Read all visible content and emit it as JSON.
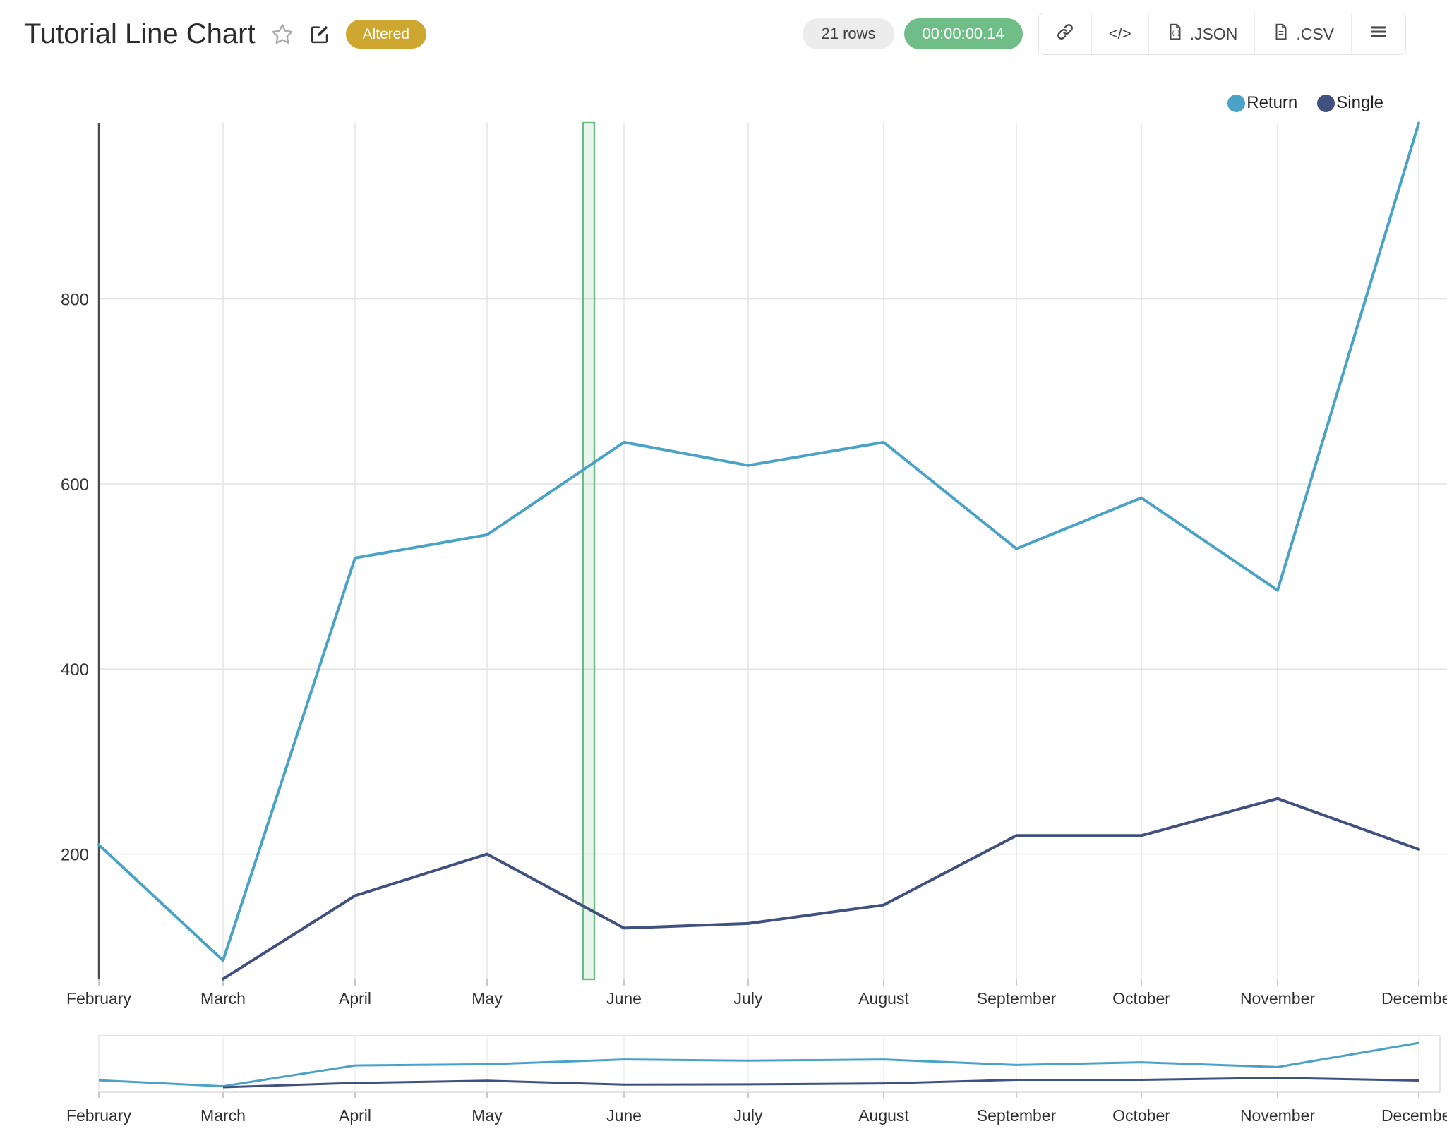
{
  "header": {
    "title": "Tutorial Line Chart",
    "badge": "Altered",
    "rows_count": "21 rows",
    "runtime": "00:00:00.14",
    "code_label": "</>",
    "export_json": ".JSON",
    "export_csv": ".CSV"
  },
  "icons": {
    "favorite": "star-outline-icon",
    "edit": "pencil-square-icon",
    "link": "chain-link-icon",
    "embed": "code-brackets-icon",
    "json_doc": "file-json-icon",
    "csv_doc": "file-csv-icon",
    "menu": "hamburger-icon"
  },
  "colors": {
    "badge_gold": "#cda72f",
    "runtime_green": "#6fbe87",
    "rows_gray": "#ececec",
    "return_line": "#4aa2c6",
    "single_line": "#41507e",
    "gridline": "#e4e4e4",
    "axis_line": "#4a4a4a",
    "tick_text": "#333333",
    "band_border": "#6cbc80",
    "band_fill": "rgba(108,188,128,0.15)"
  },
  "chart_data": {
    "type": "line",
    "x": [
      "February",
      "March",
      "April",
      "May",
      "June",
      "July",
      "August",
      "September",
      "October",
      "November",
      "December"
    ],
    "series": [
      {
        "name": "Return",
        "color": "#4aa2c6",
        "values": [
          210,
          85,
          520,
          545,
          645,
          620,
          645,
          530,
          585,
          485,
          990
        ]
      },
      {
        "name": "Single",
        "color": "#41507e",
        "values": [
          null,
          65,
          155,
          200,
          120,
          125,
          145,
          220,
          220,
          260,
          205
        ]
      }
    ],
    "title": "",
    "xlabel": "",
    "ylabel": "",
    "yticks": [
      200,
      400,
      600,
      800
    ],
    "ylim": [
      65,
      990
    ],
    "grid": true,
    "legend_position": "top-right",
    "annotation_band": {
      "between": [
        "May",
        "June"
      ],
      "color": "#6cbc80"
    },
    "rangeslider": true
  }
}
